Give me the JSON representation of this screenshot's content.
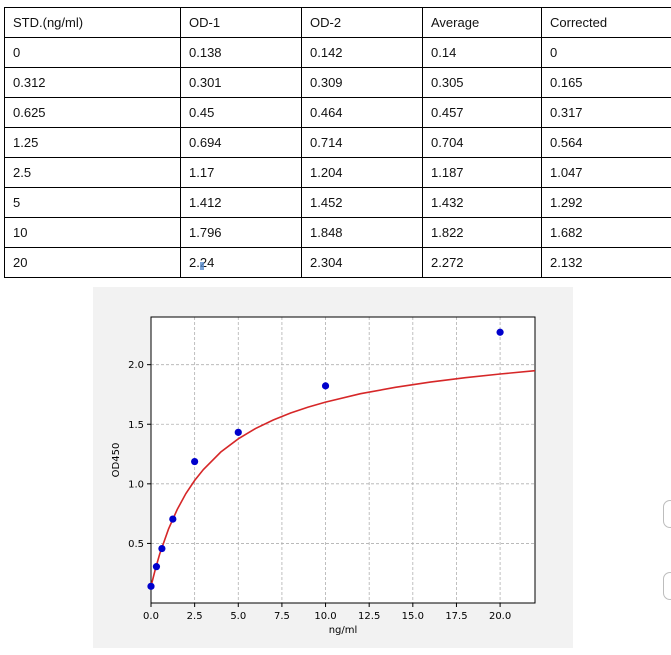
{
  "table": {
    "headers": [
      "STD.(ng/ml)",
      "OD-1",
      "OD-2",
      "Average",
      "Corrected"
    ],
    "rows": [
      [
        "0",
        "0.138",
        "0.142",
        "0.14",
        "0"
      ],
      [
        "0.312",
        "0.301",
        "0.309",
        "0.305",
        "0.165"
      ],
      [
        "0.625",
        "0.45",
        "0.464",
        "0.457",
        "0.317"
      ],
      [
        "1.25",
        "0.694",
        "0.714",
        "0.704",
        "0.564"
      ],
      [
        "2.5",
        "1.17",
        "1.204",
        "1.187",
        "1.047"
      ],
      [
        "5",
        "1.412",
        "1.452",
        "1.432",
        "1.292"
      ],
      [
        "10",
        "1.796",
        "1.848",
        "1.822",
        "1.682"
      ],
      [
        "20",
        "2.24",
        "2.304",
        "2.272",
        "2.132"
      ]
    ]
  },
  "chart_data": {
    "type": "scatter",
    "title": "",
    "xlabel": "ng/ml",
    "ylabel": "OD450",
    "xlim": [
      0,
      22
    ],
    "ylim": [
      0,
      2.4
    ],
    "xticks": [
      "0.0",
      "2.5",
      "5.0",
      "7.5",
      "10.0",
      "12.5",
      "15.0",
      "17.5",
      "20.0"
    ],
    "yticks": [
      "0.5",
      "1.0",
      "1.5",
      "2.0"
    ],
    "grid": true,
    "legend": "none",
    "series": [
      {
        "type": "scatter",
        "color": "#0000cc",
        "x": [
          0,
          0.312,
          0.625,
          1.25,
          2.5,
          5,
          10,
          20
        ],
        "y": [
          0.14,
          0.305,
          0.457,
          0.704,
          1.187,
          1.432,
          1.822,
          2.272
        ]
      },
      {
        "type": "line",
        "color": "#d62728",
        "fit": "4PL",
        "x": [
          0,
          0.25,
          0.5,
          1,
          1.5,
          2,
          2.5,
          3,
          4,
          5,
          6,
          7,
          8,
          9,
          10,
          12,
          14,
          16,
          18,
          20,
          22
        ],
        "y": [
          0.14,
          0.285,
          0.411,
          0.62,
          0.785,
          0.919,
          1.028,
          1.12,
          1.267,
          1.378,
          1.465,
          1.536,
          1.594,
          1.644,
          1.686,
          1.756,
          1.81,
          1.854,
          1.891,
          1.922,
          1.949
        ]
      }
    ]
  }
}
